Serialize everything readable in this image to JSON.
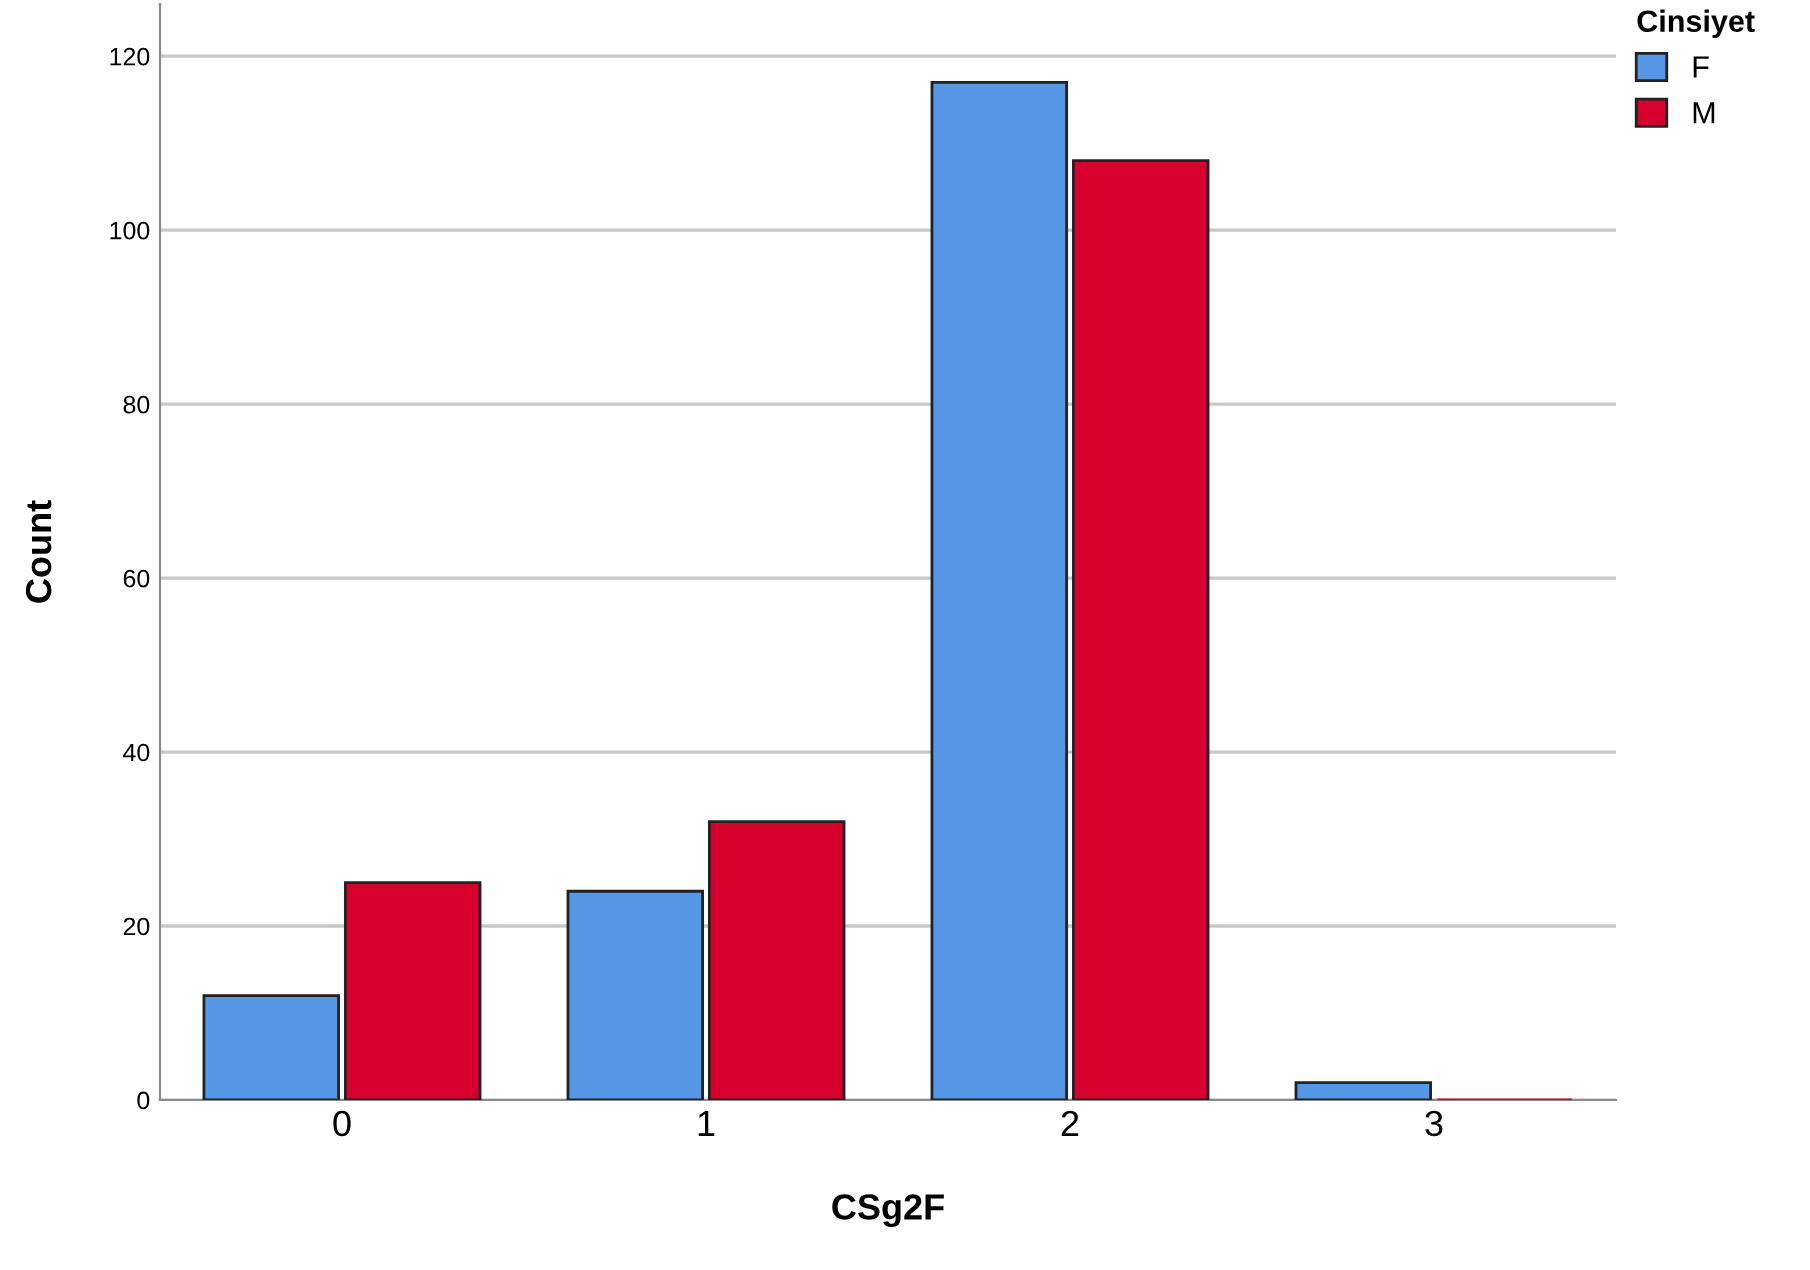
{
  "chart_data": {
    "type": "bar",
    "xlabel": "CSg2F",
    "ylabel": "Count",
    "legend_title": "Cinsiyet",
    "categories": [
      "0",
      "1",
      "2",
      "3"
    ],
    "series": [
      {
        "name": "F",
        "color": "#5597e4",
        "values": [
          12,
          24,
          117,
          2
        ]
      },
      {
        "name": "M",
        "color": "#d6002d",
        "values": [
          25,
          32,
          108,
          0
        ]
      }
    ],
    "ylim": [
      0,
      126
    ],
    "yticks": [
      0,
      20,
      40,
      60,
      80,
      100,
      120
    ],
    "grid": "y",
    "legend": "top right"
  }
}
